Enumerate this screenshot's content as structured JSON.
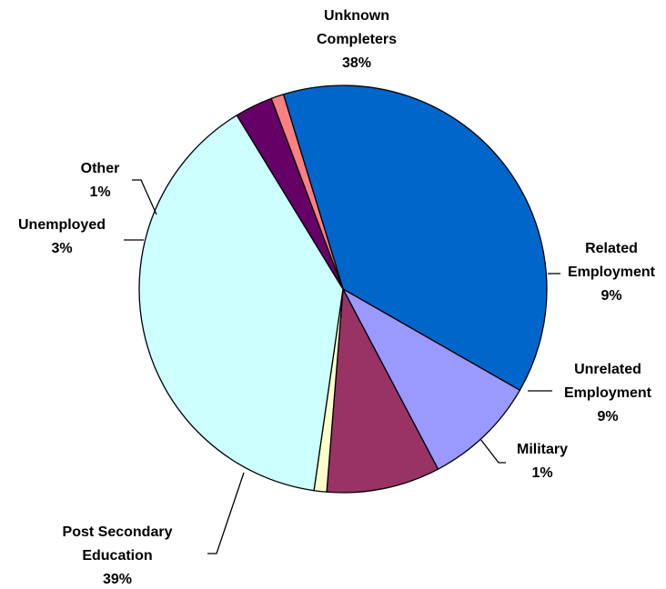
{
  "chart_data": {
    "type": "pie",
    "title": "",
    "slices": [
      {
        "label": [
          "Unknown",
          "Completers"
        ],
        "value": 38,
        "value_label": "38%",
        "color": "#0066CC"
      },
      {
        "label": [
          "Related",
          "Employment"
        ],
        "value": 9,
        "value_label": "9%",
        "color": "#9999FF"
      },
      {
        "label": [
          "Unrelated",
          "Employment"
        ],
        "value": 9,
        "value_label": "9%",
        "color": "#993366"
      },
      {
        "label": [
          "Military"
        ],
        "value": 1,
        "value_label": "1%",
        "color": "#FFFFCC"
      },
      {
        "label": [
          "Post Secondary",
          "Education"
        ],
        "value": 39,
        "value_label": "39%",
        "color": "#CCFFFF"
      },
      {
        "label": [
          "Unemployed"
        ],
        "value": 3,
        "value_label": "3%",
        "color": "#660066"
      },
      {
        "label": [
          "Other"
        ],
        "value": 1,
        "value_label": "1%",
        "color": "#FF8080"
      }
    ]
  }
}
